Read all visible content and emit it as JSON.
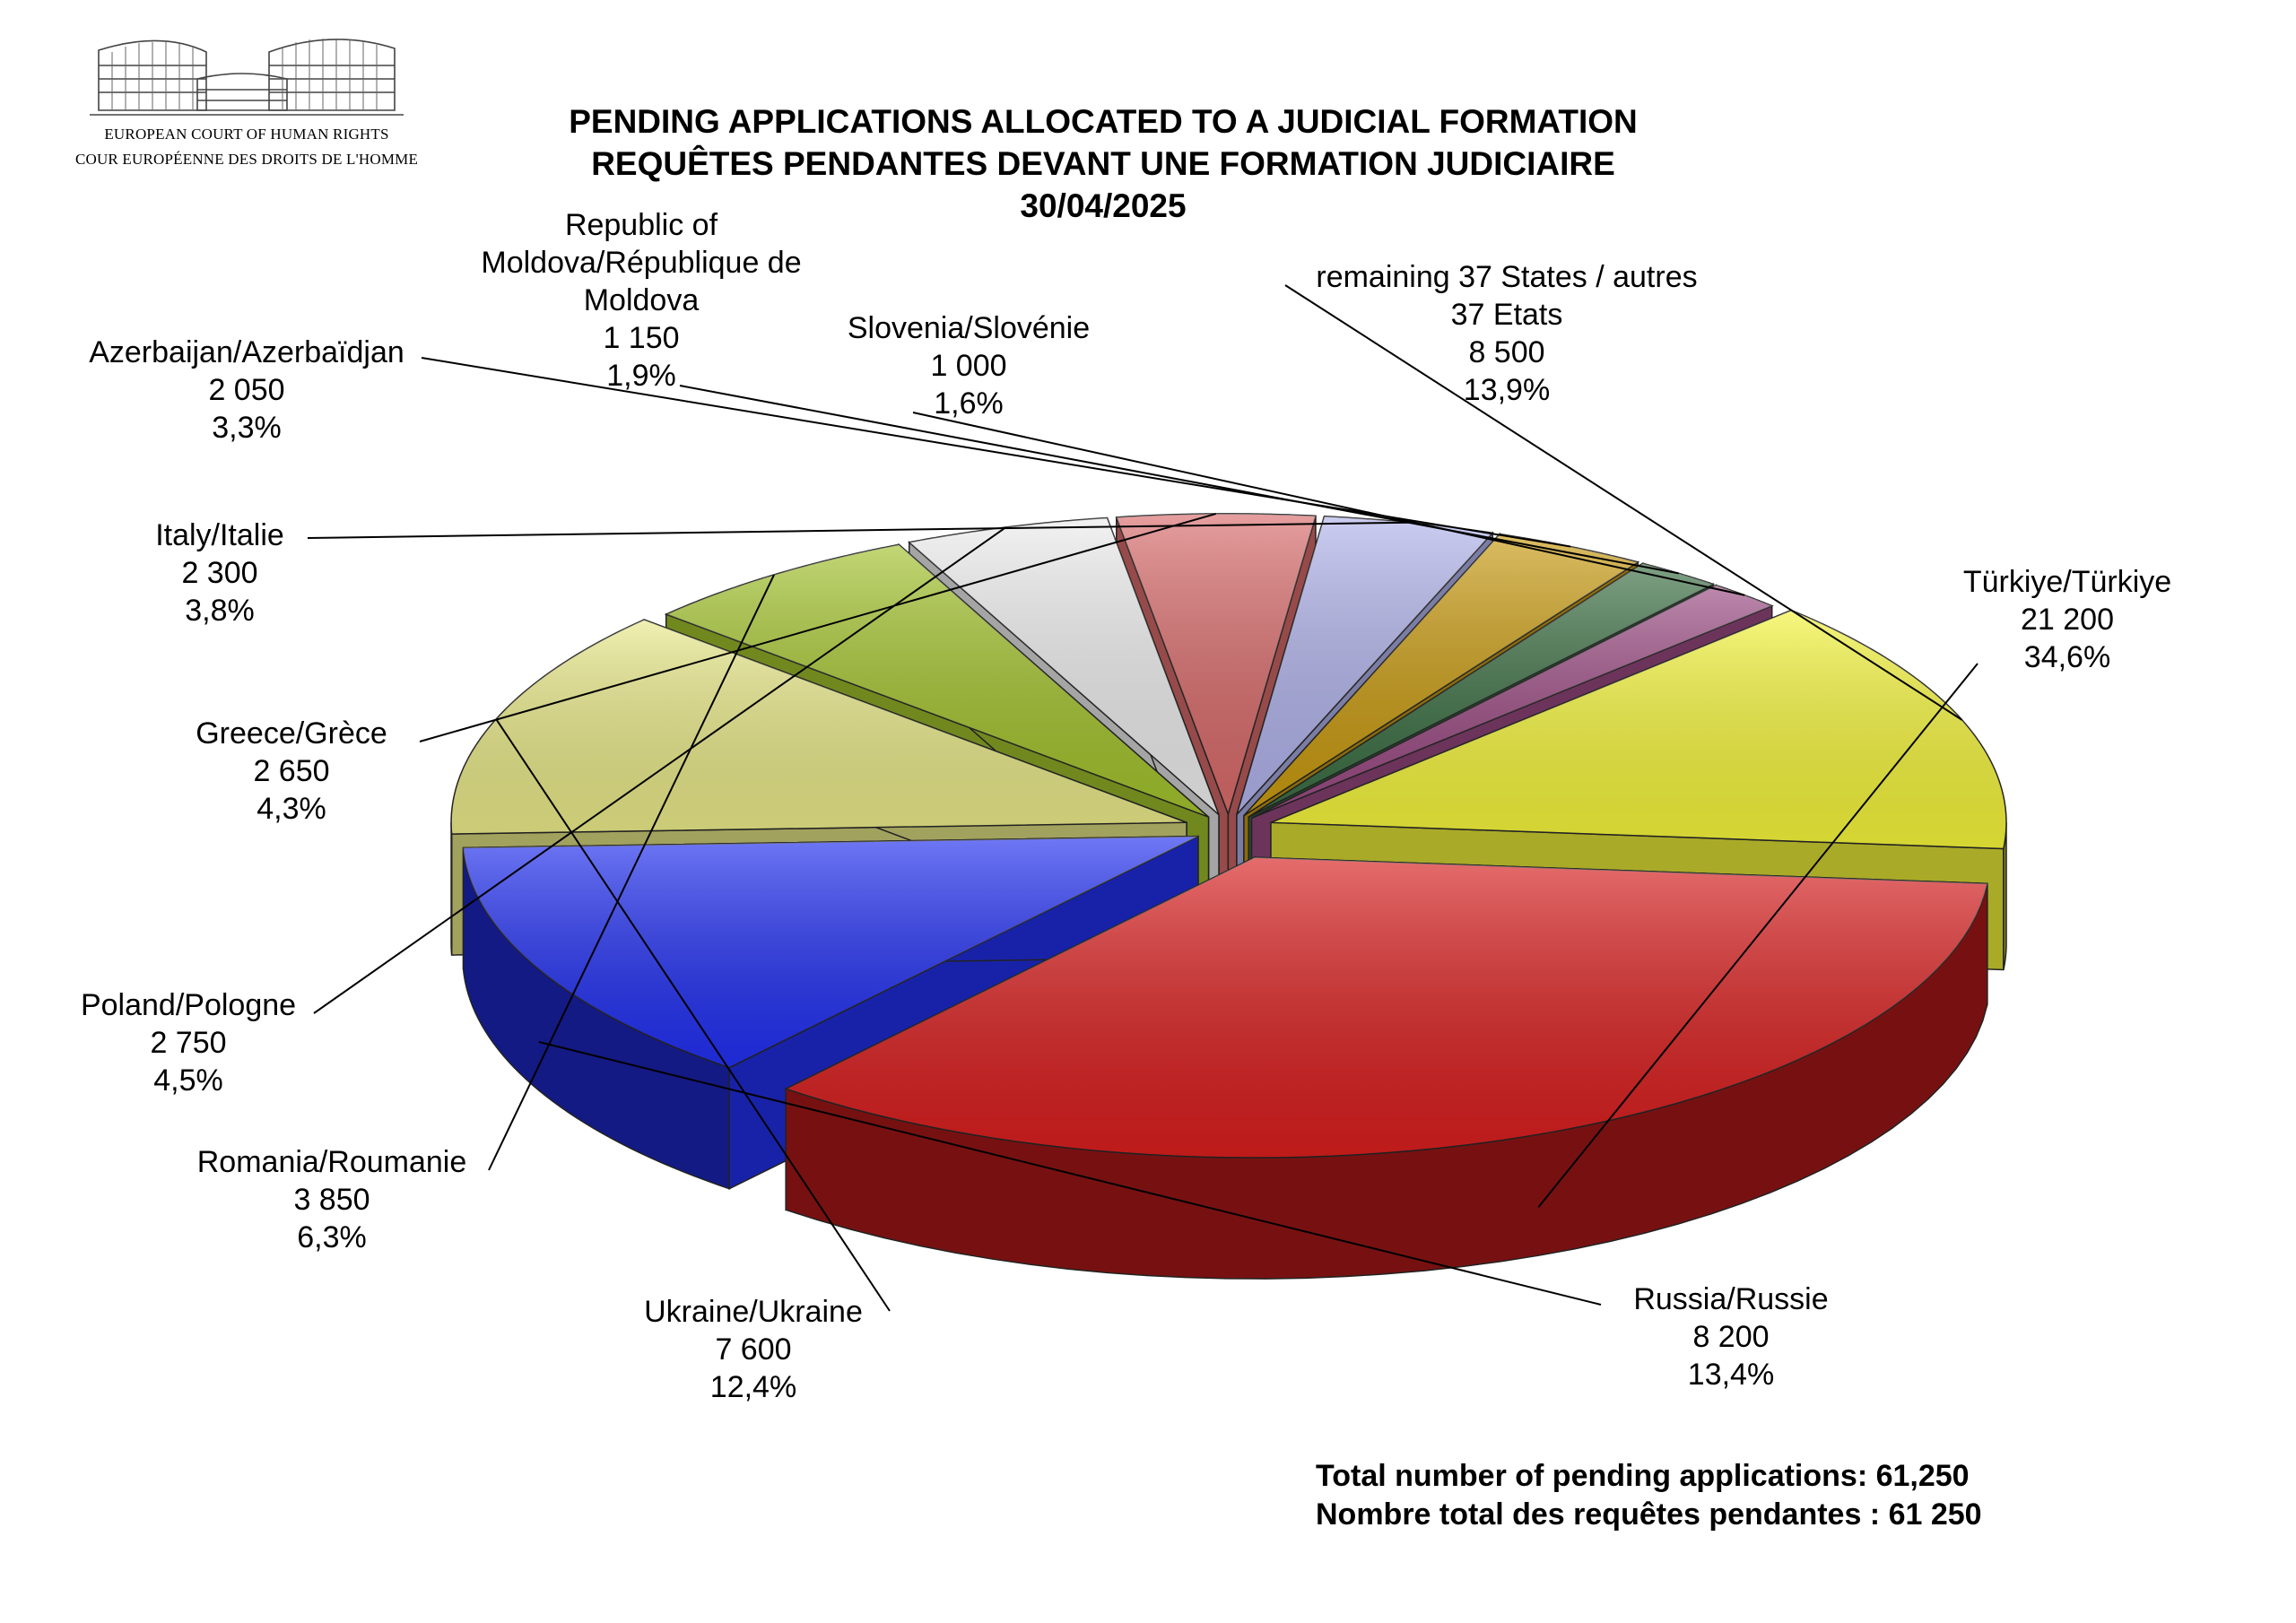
{
  "header": {
    "logo_line1": "EUROPEAN COURT OF HUMAN RIGHTS",
    "logo_line2": "COUR EUROPÉENNE DES DROITS DE L'HOMME"
  },
  "chart_data": {
    "type": "pie",
    "title": "PENDING APPLICATIONS ALLOCATED TO A JUDICIAL FORMATION",
    "subtitle": "REQUÊTES PENDANTES DEVANT UNE FORMATION JUDICIAIRE",
    "date": "30/04/2025",
    "slices": [
      {
        "label": "Türkiye/Türkiye",
        "value": 21200,
        "value_text": "21 200",
        "percent": "34,6%",
        "color": "#d81e1e"
      },
      {
        "label": "Russia/Russie",
        "value": 8200,
        "value_text": "8 200",
        "percent": "13,4%",
        "color": "#2230f0"
      },
      {
        "label": "Ukraine/Ukraine",
        "value": 7600,
        "value_text": "7 600",
        "percent": "12,4%",
        "color": "#e8e888"
      },
      {
        "label": "Romania/Roumanie",
        "value": 3850,
        "value_text": "3 850",
        "percent": "6,3%",
        "color": "#a2c22c"
      },
      {
        "label": "Poland/Pologne",
        "value": 2750,
        "value_text": "2 750",
        "percent": "4,5%",
        "color": "#ececec"
      },
      {
        "label": "Greece/Grèce",
        "value": 2650,
        "value_text": "2 650",
        "percent": "4,3%",
        "color": "#d86a6a"
      },
      {
        "label": "Italy/Italie",
        "value": 2300,
        "value_text": "2 300",
        "percent": "3,8%",
        "color": "#b0b2ea"
      },
      {
        "label": "Azerbaijan/Azerbaïdjan",
        "value": 2050,
        "value_text": "2 050",
        "percent": "3,3%",
        "color": "#c89a10"
      },
      {
        "label": "Republic of Moldova/République de Moldova",
        "value": 1150,
        "value_text": "1 150",
        "percent": "1,9%",
        "color": "#3a6e42"
      },
      {
        "label": "Slovenia/Slovénie",
        "value": 1000,
        "value_text": "1 000",
        "percent": "1,6%",
        "color": "#9a4a82"
      },
      {
        "label": "remaining 37 States / autres 37 Etats",
        "value": 8500,
        "value_text": "8 500",
        "percent": "13,9%",
        "color": "#f3f33a"
      }
    ]
  },
  "labels": {
    "turkiye": {
      "lines": [
        "Türkiye/Türkiye",
        "21 200",
        "34,6%"
      ]
    },
    "russia": {
      "lines": [
        "Russia/Russie",
        "8 200",
        "13,4%"
      ]
    },
    "ukraine": {
      "lines": [
        "Ukraine/Ukraine",
        "7 600",
        "12,4%"
      ]
    },
    "romania": {
      "lines": [
        "Romania/Roumanie",
        "3 850",
        "6,3%"
      ]
    },
    "poland": {
      "lines": [
        "Poland/Pologne",
        "2 750",
        "4,5%"
      ]
    },
    "greece": {
      "lines": [
        "Greece/Grèce",
        "2 650",
        "4,3%"
      ]
    },
    "italy": {
      "lines": [
        "Italy/Italie",
        "2 300",
        "3,8%"
      ]
    },
    "azerbaijan": {
      "lines": [
        "Azerbaijan/Azerbaïdjan",
        "2 050",
        "3,3%"
      ]
    },
    "moldova": {
      "lines": [
        "Republic of",
        "Moldova/République de",
        "Moldova",
        "1 150",
        "1,9%"
      ]
    },
    "slovenia": {
      "lines": [
        "Slovenia/Slovénie",
        "1 000",
        "1,6%"
      ]
    },
    "remaining": {
      "lines": [
        "remaining 37 States / autres",
        "37 Etats",
        "8 500",
        "13,9%"
      ]
    }
  },
  "totals": {
    "en": "Total number of pending applications:  61,250",
    "fr": "Nombre total des requêtes pendantes : 61 250"
  }
}
